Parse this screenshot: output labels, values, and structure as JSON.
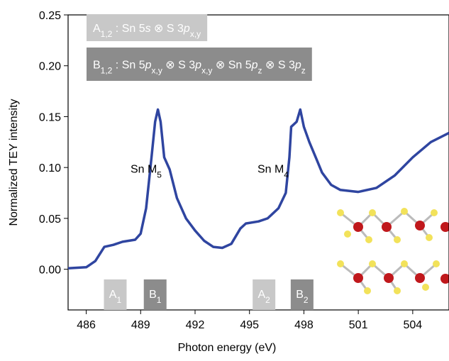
{
  "chart_data": {
    "type": "line",
    "xlabel": "Photon energy (eV)",
    "ylabel": "Normalized TEY intensity",
    "xlim": [
      485,
      506
    ],
    "ylim": [
      -0.04,
      0.25
    ],
    "xticks": [
      486,
      489,
      492,
      495,
      498,
      501,
      504
    ],
    "yticks": [
      {
        "value": 0,
        "label": "0.00"
      },
      {
        "value": 0.05,
        "label": "0.05"
      },
      {
        "value": 0.1,
        "label": "0.10"
      },
      {
        "value": 0.15,
        "label": "0.15"
      },
      {
        "value": 0.2,
        "label": "0.20"
      },
      {
        "value": 0.25,
        "label": "0.25"
      }
    ],
    "series": [
      {
        "color": "#2f45a0",
        "x": [
          485,
          486,
          486.5,
          487,
          487.5,
          488,
          488.7,
          489,
          489.3,
          489.6,
          489.8,
          489.95,
          490.1,
          490.3,
          490.6,
          491,
          491.5,
          492,
          492.5,
          493,
          493.5,
          494,
          494.5,
          494.8,
          495.5,
          496,
          496.6,
          497,
          497.2,
          497.3,
          497.6,
          497.8,
          498,
          498.3,
          498.7,
          499,
          499.5,
          500,
          501,
          502,
          503,
          504,
          505,
          506
        ],
        "values": [
          0.001,
          0.002,
          0.008,
          0.022,
          0.024,
          0.027,
          0.029,
          0.035,
          0.06,
          0.11,
          0.145,
          0.157,
          0.145,
          0.11,
          0.098,
          0.07,
          0.05,
          0.038,
          0.028,
          0.022,
          0.021,
          0.025,
          0.04,
          0.045,
          0.047,
          0.05,
          0.06,
          0.075,
          0.11,
          0.14,
          0.145,
          0.157,
          0.14,
          0.125,
          0.108,
          0.095,
          0.083,
          0.078,
          0.076,
          0.08,
          0.092,
          0.11,
          0.125,
          0.134
        ]
      }
    ],
    "legend_boxes": [
      {
        "color": "#c8c8c8",
        "runs": [
          {
            "t": "A"
          },
          {
            "t": "1,2",
            "sub": true
          },
          {
            "t": " : Sn 5"
          },
          {
            "t": "s",
            "italic": true
          },
          {
            "t": " ⊗ S 3"
          },
          {
            "t": "p",
            "italic": true
          },
          {
            "t": "x,y",
            "sub": true
          }
        ]
      },
      {
        "color": "#8c8c8c",
        "runs": [
          {
            "t": "B"
          },
          {
            "t": "1,2",
            "sub": true
          },
          {
            "t": " : Sn 5"
          },
          {
            "t": "p",
            "italic": true
          },
          {
            "t": "x,y",
            "sub": true
          },
          {
            "t": " ⊗ S 3"
          },
          {
            "t": "p",
            "italic": true
          },
          {
            "t": "x,y",
            "sub": true
          },
          {
            "t": " ⊗ Sn 5"
          },
          {
            "t": "p",
            "italic": true
          },
          {
            "t": "z",
            "sub": true
          },
          {
            "t": " ⊗ S 3"
          },
          {
            "t": "p",
            "italic": true
          },
          {
            "t": "z",
            "sub": true
          }
        ]
      }
    ],
    "peak_labels": [
      {
        "x": 489.3,
        "y": 0.095,
        "runs": [
          {
            "t": "Sn M"
          },
          {
            "t": "5",
            "sub": true
          }
        ]
      },
      {
        "x": 496.3,
        "y": 0.095,
        "runs": [
          {
            "t": "Sn M"
          },
          {
            "t": "4",
            "sub": true
          }
        ]
      }
    ],
    "marker_boxes": [
      {
        "x": 487.6,
        "color": "#c8c8c8",
        "runs": [
          {
            "t": "A"
          },
          {
            "t": "1",
            "sub": true
          }
        ]
      },
      {
        "x": 489.8,
        "color": "#8c8c8c",
        "runs": [
          {
            "t": "B"
          },
          {
            "t": "1",
            "sub": true
          }
        ]
      },
      {
        "x": 495.8,
        "color": "#c8c8c8",
        "runs": [
          {
            "t": "A"
          },
          {
            "t": "2",
            "sub": true
          }
        ]
      },
      {
        "x": 497.9,
        "color": "#8c8c8c",
        "runs": [
          {
            "t": "B"
          },
          {
            "t": "2",
            "sub": true
          }
        ]
      }
    ]
  }
}
